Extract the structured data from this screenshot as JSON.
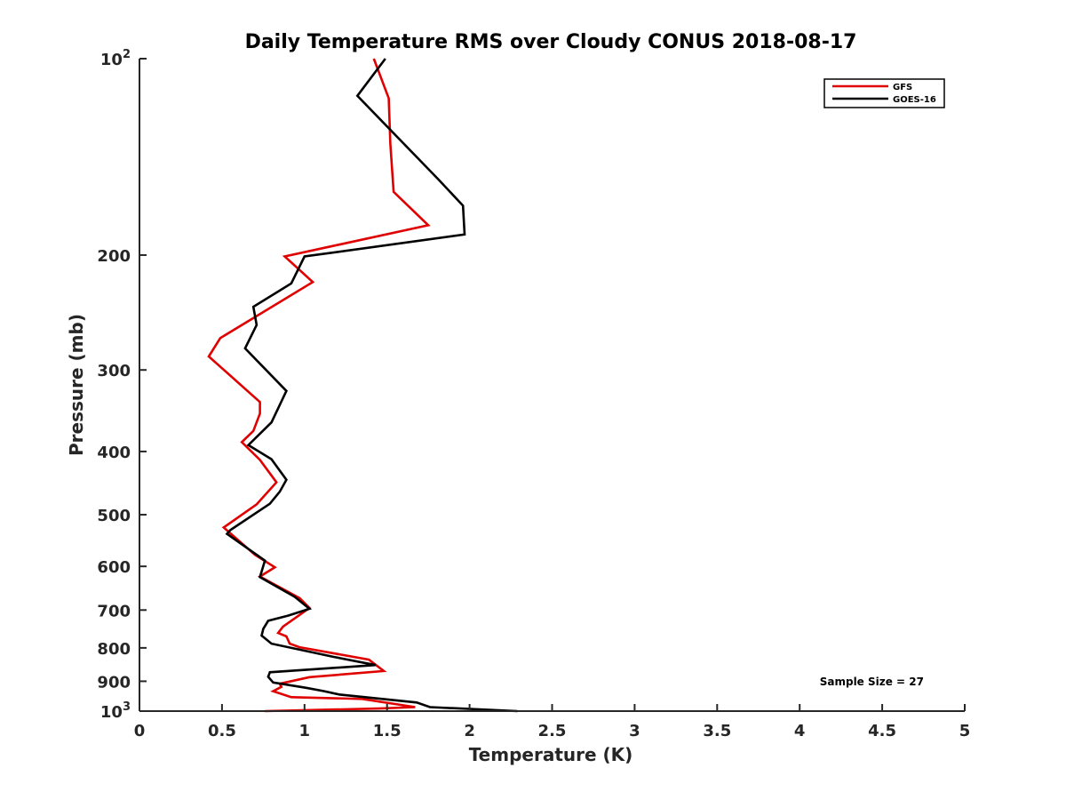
{
  "chart_data": {
    "type": "line",
    "title": "Daily Temperature RMS over Cloudy CONUS 2018-08-17",
    "xlabel": "Temperature (K)",
    "ylabel": "Pressure (mb)",
    "xlim": [
      0,
      5
    ],
    "ylim": [
      100,
      1000
    ],
    "y_scale": "log",
    "y_reversed": true,
    "x_ticks": [
      {
        "value": 0,
        "label": "0"
      },
      {
        "value": 0.5,
        "label": "0.5"
      },
      {
        "value": 1,
        "label": "1"
      },
      {
        "value": 1.5,
        "label": "1.5"
      },
      {
        "value": 2,
        "label": "2"
      },
      {
        "value": 2.5,
        "label": "2.5"
      },
      {
        "value": 3,
        "label": "3"
      },
      {
        "value": 3.5,
        "label": "3.5"
      },
      {
        "value": 4,
        "label": "4"
      },
      {
        "value": 4.5,
        "label": "4.5"
      },
      {
        "value": 5,
        "label": "5"
      }
    ],
    "y_ticks": [
      {
        "value": 100,
        "base": "10",
        "exp": "2"
      },
      {
        "value": 200,
        "label": "200"
      },
      {
        "value": 300,
        "label": "300"
      },
      {
        "value": 400,
        "label": "400"
      },
      {
        "value": 500,
        "label": "500"
      },
      {
        "value": 600,
        "label": "600"
      },
      {
        "value": 700,
        "label": "700"
      },
      {
        "value": 800,
        "label": "800"
      },
      {
        "value": 900,
        "label": "900"
      },
      {
        "value": 1000,
        "base": "10",
        "exp": "3"
      }
    ],
    "grid": false,
    "legend_position": "top-right",
    "series": [
      {
        "name": "GFS",
        "color": "#e00000",
        "points": [
          [
            1.42,
            100
          ],
          [
            1.51,
            115
          ],
          [
            1.52,
            135
          ],
          [
            1.54,
            160
          ],
          [
            1.75,
            180
          ],
          [
            0.88,
            201
          ],
          [
            1.05,
            220
          ],
          [
            0.49,
            268
          ],
          [
            0.42,
            286
          ],
          [
            0.73,
            336
          ],
          [
            0.73,
            350
          ],
          [
            0.69,
            372
          ],
          [
            0.62,
            387
          ],
          [
            0.73,
            412
          ],
          [
            0.83,
            446
          ],
          [
            0.71,
            482
          ],
          [
            0.51,
            523
          ],
          [
            0.7,
            576
          ],
          [
            0.82,
            602
          ],
          [
            0.73,
            622
          ],
          [
            0.97,
            671
          ],
          [
            1.03,
            695
          ],
          [
            0.87,
            742
          ],
          [
            0.84,
            759
          ],
          [
            0.89,
            768
          ],
          [
            0.91,
            788
          ],
          [
            0.97,
            798
          ],
          [
            1.39,
            834
          ],
          [
            1.48,
            868
          ],
          [
            1.03,
            887
          ],
          [
            0.85,
            908
          ],
          [
            0.86,
            918
          ],
          [
            0.81,
            932
          ],
          [
            0.92,
            952
          ],
          [
            1.35,
            958
          ],
          [
            1.67,
            986
          ],
          [
            1.45,
            991
          ],
          [
            0.76,
            1000
          ]
        ]
      },
      {
        "name": "GOES-16",
        "color": "#000000",
        "points": [
          [
            1.49,
            100
          ],
          [
            1.32,
            114
          ],
          [
            1.81,
            153
          ],
          [
            1.96,
            168
          ],
          [
            1.97,
            186
          ],
          [
            1.0,
            201
          ],
          [
            0.92,
            221
          ],
          [
            0.69,
            240
          ],
          [
            0.71,
            256
          ],
          [
            0.64,
            278
          ],
          [
            0.89,
            323
          ],
          [
            0.8,
            361
          ],
          [
            0.66,
            391
          ],
          [
            0.8,
            411
          ],
          [
            0.89,
            442
          ],
          [
            0.85,
            461
          ],
          [
            0.79,
            481
          ],
          [
            0.55,
            528
          ],
          [
            0.53,
            535
          ],
          [
            0.76,
            588
          ],
          [
            0.73,
            623
          ],
          [
            0.94,
            668
          ],
          [
            1.03,
            697
          ],
          [
            0.9,
            714
          ],
          [
            0.78,
            727
          ],
          [
            0.75,
            748
          ],
          [
            0.74,
            766
          ],
          [
            0.8,
            788
          ],
          [
            1.18,
            826
          ],
          [
            1.43,
            850
          ],
          [
            0.79,
            872
          ],
          [
            0.78,
            886
          ],
          [
            0.81,
            904
          ],
          [
            1.01,
            921
          ],
          [
            1.12,
            932
          ],
          [
            1.21,
            943
          ],
          [
            1.68,
            970
          ],
          [
            1.76,
            986
          ],
          [
            2.29,
            1000
          ]
        ]
      }
    ],
    "legend": {
      "entries": [
        "GFS",
        "GOES-16"
      ]
    },
    "annotation": "Sample Size = 27"
  }
}
